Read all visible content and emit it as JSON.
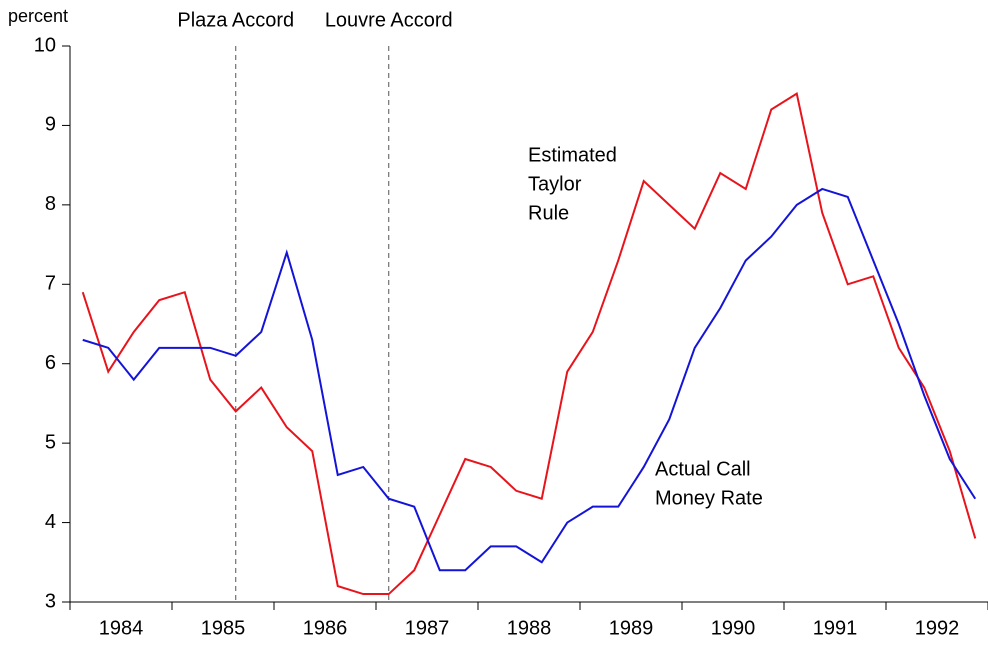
{
  "chart_data": {
    "type": "line",
    "y_label": "percent",
    "x": [
      1984.125,
      1984.375,
      1984.625,
      1984.875,
      1985.125,
      1985.375,
      1985.625,
      1985.875,
      1986.125,
      1986.375,
      1986.625,
      1986.875,
      1987.125,
      1987.375,
      1987.625,
      1987.875,
      1988.125,
      1988.375,
      1988.625,
      1988.875,
      1989.125,
      1989.375,
      1989.625,
      1989.875,
      1990.125,
      1990.375,
      1990.625,
      1990.875,
      1991.125,
      1991.375,
      1991.625,
      1991.875,
      1992.125,
      1992.375,
      1992.625,
      1992.875
    ],
    "series": [
      {
        "name": "Estimated Taylor Rule",
        "color": "#e8141c",
        "values": [
          6.9,
          5.9,
          6.4,
          6.8,
          6.9,
          5.8,
          5.4,
          5.7,
          5.2,
          4.9,
          3.2,
          3.1,
          3.1,
          3.4,
          4.1,
          4.8,
          4.7,
          4.4,
          4.3,
          5.9,
          6.4,
          7.3,
          8.3,
          8.0,
          7.7,
          8.4,
          8.2,
          9.2,
          9.4,
          7.9,
          7.0,
          7.1,
          6.2,
          5.7,
          4.9,
          3.8
        ]
      },
      {
        "name": "Actual Call Money Rate",
        "color": "#1414d8",
        "values": [
          6.3,
          6.2,
          5.8,
          6.2,
          6.2,
          6.2,
          6.1,
          6.4,
          7.4,
          6.3,
          4.6,
          4.7,
          4.3,
          4.2,
          3.4,
          3.4,
          3.7,
          3.7,
          3.5,
          4.0,
          4.2,
          4.2,
          4.7,
          5.3,
          6.2,
          6.7,
          7.3,
          7.6,
          8.0,
          8.2,
          8.1,
          7.3,
          6.5,
          5.6,
          4.8,
          4.3
        ]
      }
    ],
    "series_labels": [
      [
        "Estimated",
        "Taylor",
        "Rule"
      ],
      [
        "Actual Call",
        "Money Rate"
      ]
    ],
    "annotations": [
      {
        "text": "Plaza Accord",
        "x": 1985.625
      },
      {
        "text": "Louvre Accord",
        "x": 1987.125
      }
    ],
    "xlim": [
      1984,
      1993
    ],
    "xticks": [
      1984,
      1985,
      1986,
      1987,
      1988,
      1989,
      1990,
      1991,
      1992,
      1993
    ],
    "year_labels": [
      {
        "value": 1984.5,
        "label": "1984"
      },
      {
        "value": 1985.5,
        "label": "1985"
      },
      {
        "value": 1986.5,
        "label": "1986"
      },
      {
        "value": 1987.5,
        "label": "1987"
      },
      {
        "value": 1988.5,
        "label": "1988"
      },
      {
        "value": 1989.5,
        "label": "1989"
      },
      {
        "value": 1990.5,
        "label": "1990"
      },
      {
        "value": 1991.5,
        "label": "1991"
      },
      {
        "value": 1992.5,
        "label": "1992"
      }
    ],
    "ylim": [
      3,
      10
    ],
    "yticks": [
      3,
      4,
      5,
      6,
      7,
      8,
      9,
      10
    ],
    "grid": false
  }
}
